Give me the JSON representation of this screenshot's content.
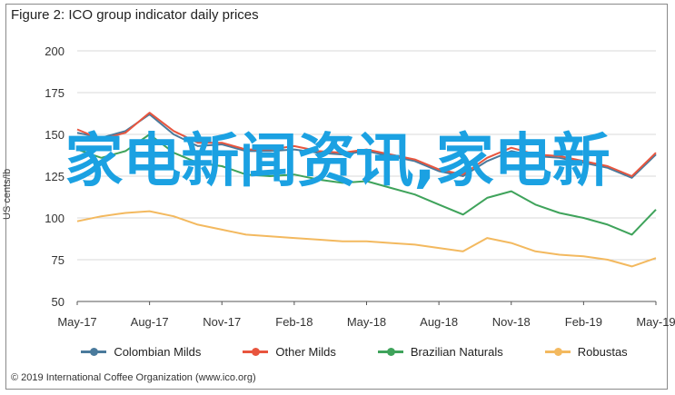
{
  "figure": {
    "title": "Figure 2: ICO group indicator daily prices",
    "source": "© 2019 International Coffee Organization (www.ico.org)",
    "overlay_text": "家电新闻资讯,家电新"
  },
  "chart_data": {
    "type": "line",
    "title": "Figure 2: ICO group indicator daily prices",
    "ylabel": "US cents/lb",
    "xlabel": "",
    "ylim": [
      50,
      200
    ],
    "yticks": [
      "200",
      "175",
      "150",
      "125",
      "100",
      "75",
      "50"
    ],
    "ytick_values": [
      200,
      175,
      150,
      125,
      100,
      75,
      50
    ],
    "x_tick_labels": [
      "May-17",
      "Aug-17",
      "Nov-17",
      "Feb-18",
      "May-18",
      "Aug-18",
      "Nov-18",
      "Feb-19",
      "May-19"
    ],
    "x": [
      "May-17",
      "Jun-17",
      "Jul-17",
      "Aug-17",
      "Sep-17",
      "Oct-17",
      "Nov-17",
      "Dec-17",
      "Jan-18",
      "Feb-18",
      "Mar-18",
      "Apr-18",
      "May-18",
      "Jun-18",
      "Jul-18",
      "Aug-18",
      "Sep-18",
      "Oct-18",
      "Nov-18",
      "Dec-18",
      "Jan-19",
      "Feb-19",
      "Mar-19",
      "Apr-19",
      "May-19"
    ],
    "grid": true,
    "legend_position": "bottom",
    "series": [
      {
        "name": "Colombian Milds",
        "color": "#4a7a9c",
        "values": [
          151,
          148,
          152,
          162,
          150,
          143,
          144,
          140,
          140,
          141,
          139,
          138,
          140,
          137,
          134,
          128,
          125,
          134,
          140,
          137,
          136,
          133,
          130,
          124,
          138
        ]
      },
      {
        "name": "Other Milds",
        "color": "#e8553e",
        "values": [
          153,
          147,
          151,
          163,
          152,
          145,
          145,
          141,
          141,
          143,
          140,
          139,
          141,
          138,
          135,
          129,
          126,
          136,
          142,
          138,
          137,
          134,
          131,
          125,
          139
        ]
      },
      {
        "name": "Brazilian Naturals",
        "color": "#3fa35b",
        "values": [
          141,
          136,
          140,
          150,
          139,
          133,
          131,
          126,
          125,
          126,
          123,
          121,
          122,
          118,
          114,
          108,
          102,
          112,
          116,
          108,
          103,
          100,
          96,
          90,
          105
        ]
      },
      {
        "name": "Robustas",
        "color": "#f3b95f",
        "values": [
          98,
          101,
          103,
          104,
          101,
          96,
          93,
          90,
          89,
          88,
          87,
          86,
          86,
          85,
          84,
          82,
          80,
          88,
          85,
          80,
          78,
          77,
          75,
          71,
          76
        ]
      }
    ]
  }
}
